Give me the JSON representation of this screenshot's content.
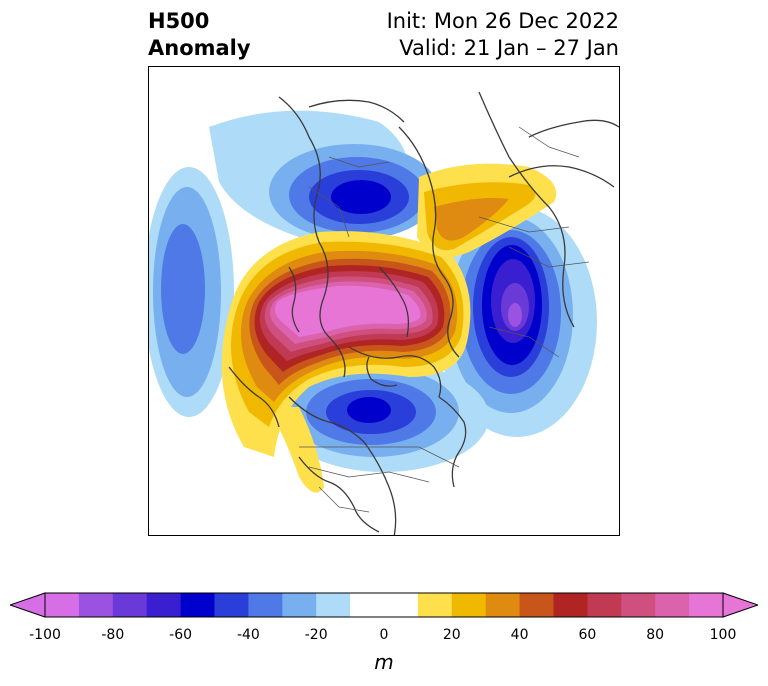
{
  "header": {
    "title_line1": "H500",
    "title_line2": "Anomaly",
    "init_text": "Init: Mon 26 Dec 2022",
    "valid_text": "Valid: 21 Jan – 27 Jan"
  },
  "colorbar": {
    "unit": "m",
    "ticks": [
      "-100",
      "-80",
      "-60",
      "-40",
      "-20",
      "0",
      "20",
      "40",
      "60",
      "80",
      "100"
    ],
    "colors": [
      "#d66fe6",
      "#9b52e0",
      "#6a3ad9",
      "#3a1fd0",
      "#0000cc",
      "#2a3fd9",
      "#4e79e6",
      "#78afef",
      "#aedcf8",
      "#ffffff",
      "#ffffff",
      "#fde04c",
      "#f0b800",
      "#df8a10",
      "#c85519",
      "#b12424",
      "#c13a54",
      "#cf4f7e",
      "#db62ad",
      "#e775d6"
    ]
  },
  "map": {
    "projection": "polar-stereographic",
    "region": "Northern Hemisphere"
  }
}
